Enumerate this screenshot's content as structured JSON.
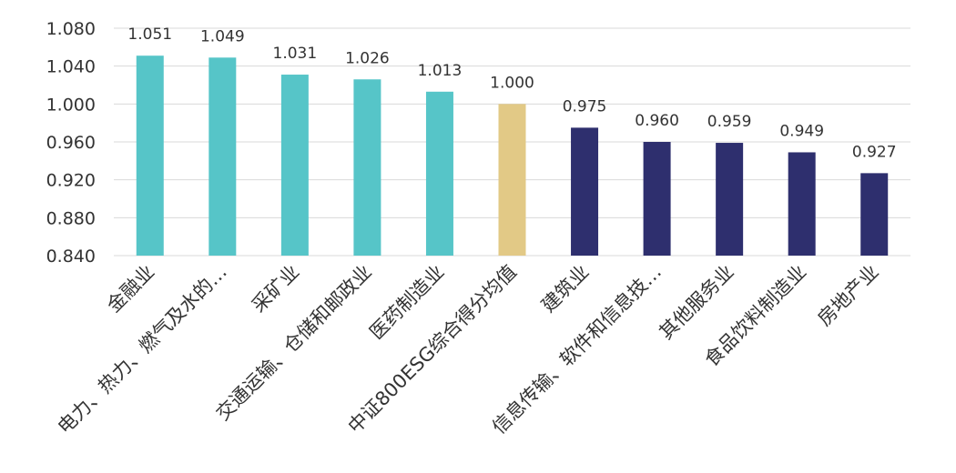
{
  "chart_data": {
    "type": "bar",
    "title": "",
    "xlabel": "",
    "ylabel": "",
    "ylim": [
      0.84,
      1.08
    ],
    "yticks": [
      "0.840",
      "0.880",
      "0.920",
      "0.960",
      "1.000",
      "1.040",
      "1.080"
    ],
    "grid": true,
    "legend": "none",
    "categories": [
      "金融业",
      "电力、热力、燃气及水的…",
      "采矿业",
      "交通运输、仓储和邮政业",
      "医药制造业",
      "中证800ESG综合得分均值",
      "建筑业",
      "信息传输、软件和信息技…",
      "其他服务业",
      "食品饮料制造业",
      "房地产业"
    ],
    "values": [
      1.051,
      1.049,
      1.031,
      1.026,
      1.013,
      1.0,
      0.975,
      0.96,
      0.959,
      0.949,
      0.927
    ],
    "data_labels": [
      "1.051",
      "1.049",
      "1.031",
      "1.026",
      "1.013",
      "1.000",
      "0.975",
      "0.960",
      "0.959",
      "0.949",
      "0.927"
    ],
    "bar_colors": [
      "#56C5C8",
      "#56C5C8",
      "#56C5C8",
      "#56C5C8",
      "#56C5C8",
      "#E2C986",
      "#2E2F6E",
      "#2E2F6E",
      "#2E2F6E",
      "#2E2F6E",
      "#2E2F6E"
    ]
  }
}
